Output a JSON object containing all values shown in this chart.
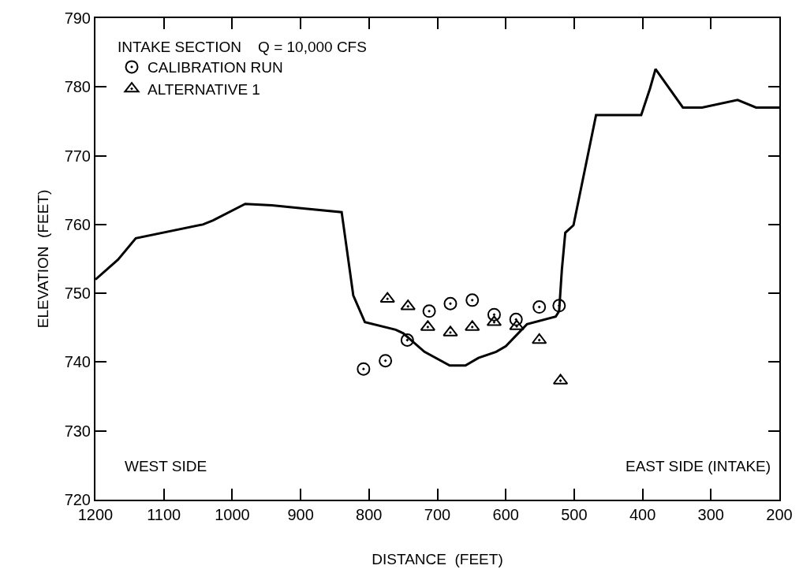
{
  "chart_data": {
    "type": "line",
    "xlabel": "DISTANCE  (FEET)",
    "ylabel": "ELEVATION  (FEET)",
    "legend_title": "INTAKE SECTION    Q = 10,000 CFS",
    "xlim": [
      1200,
      200
    ],
    "xticks": [
      1200,
      1100,
      1000,
      900,
      800,
      700,
      600,
      500,
      400,
      300,
      200
    ],
    "ylim": [
      720,
      790
    ],
    "yticks": [
      720,
      730,
      740,
      750,
      760,
      770,
      780,
      790
    ],
    "grid": false,
    "legend": "top left",
    "series": [
      {
        "color": "#000000",
        "marker": "none",
        "line_style": "solid",
        "x": [
          1200,
          1167,
          1141,
          1043,
          1028,
          981,
          942,
          893,
          840,
          823,
          806,
          761,
          750,
          719,
          682,
          659,
          640,
          614,
          600,
          569,
          527,
          522,
          518,
          513,
          501,
          468,
          402,
          389,
          381,
          341,
          313,
          261,
          234,
          200
        ],
        "values": [
          752.0,
          754.9,
          758.0,
          760.0,
          760.6,
          763.0,
          762.8,
          762.3,
          761.8,
          749.7,
          745.8,
          744.7,
          744.2,
          741.5,
          739.5,
          739.5,
          740.6,
          741.5,
          742.3,
          745.5,
          746.6,
          747.4,
          753.4,
          758.8,
          759.9,
          775.9,
          775.9,
          779.8,
          782.6,
          777.0,
          777.0,
          778.1,
          777.0,
          777.0
        ]
      },
      {
        "type": "scatter",
        "name": "CALIBRATION RUN",
        "color": "#000000",
        "marker": "circle",
        "x": [
          808,
          776,
          744,
          712,
          681,
          649,
          617,
          585,
          551,
          522
        ],
        "values": [
          739.0,
          740.2,
          743.2,
          747.4,
          748.5,
          749.0,
          746.9,
          746.2,
          748.0,
          748.2
        ]
      },
      {
        "type": "scatter",
        "name": "ALTERNATIVE 1",
        "color": "#000000",
        "marker": "triangle",
        "x": [
          773,
          743,
          714,
          681,
          649,
          617,
          584,
          551,
          520
        ],
        "values": [
          749.2,
          748.1,
          745.1,
          744.3,
          745.1,
          745.8,
          745.2,
          743.2,
          737.3
        ]
      }
    ],
    "annotations": [
      "WEST SIDE",
      "EAST SIDE (INTAKE)"
    ]
  }
}
